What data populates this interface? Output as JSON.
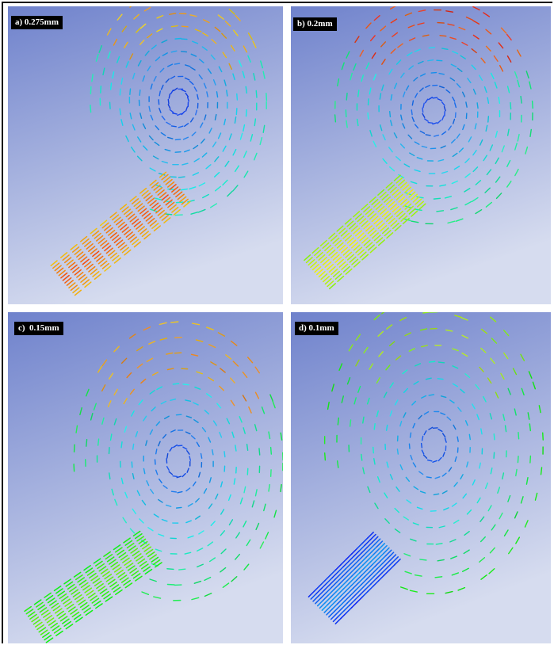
{
  "panels": [
    {
      "label": "a) 0.275mm"
    },
    {
      "label": "b) 0.2mm"
    },
    {
      "label": "c)  0.15mm"
    },
    {
      "label": "d) 0.1mm"
    }
  ]
}
